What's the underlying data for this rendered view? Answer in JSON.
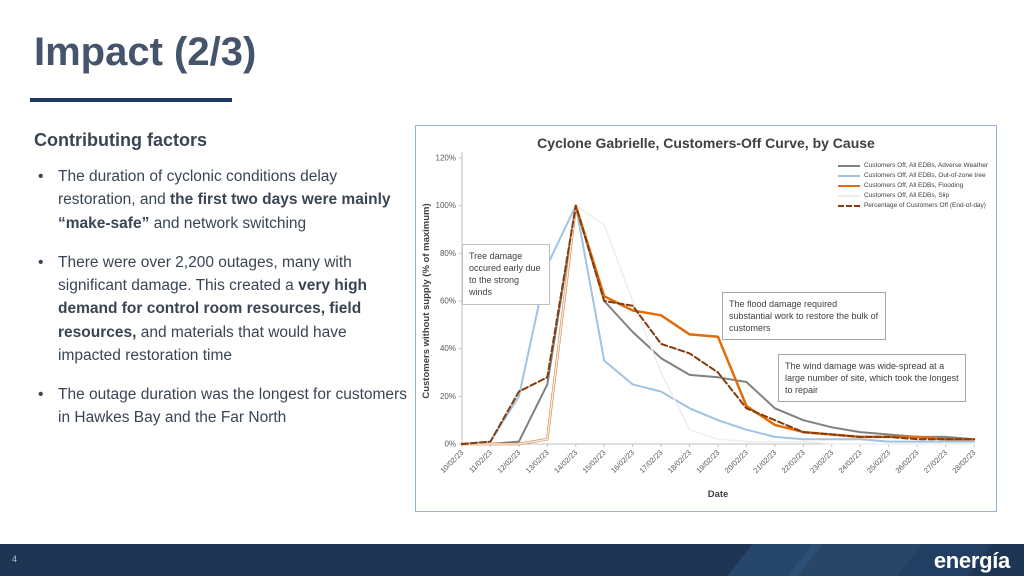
{
  "slide": {
    "title": "Impact (2/3)",
    "page_number": "4",
    "logo_text": "energía"
  },
  "left_panel": {
    "heading": "Contributing factors",
    "bullets": [
      {
        "segments": [
          {
            "text": "The duration of cyclonic conditions delay restoration, and ",
            "bold": false
          },
          {
            "text": "the first two days were mainly “make-safe” ",
            "bold": true
          },
          {
            "text": "and network switching",
            "bold": false
          }
        ]
      },
      {
        "segments": [
          {
            "text": "There were over 2,200 outages, many with significant damage. This created a ",
            "bold": false
          },
          {
            "text": "very high demand for control room resources, field resources, ",
            "bold": true
          },
          {
            "text": "and materials that would have impacted restoration time",
            "bold": false
          }
        ]
      },
      {
        "segments": [
          {
            "text": "The outage duration was the longest for customers in Hawkes Bay and the Far North",
            "bold": false
          }
        ]
      }
    ]
  },
  "chart_data": {
    "type": "line",
    "title": "Cyclone Gabrielle, Customers-Off Curve, by Cause",
    "xlabel": "Date",
    "ylabel": "Customers without supply (% of maximum)",
    "ylim": [
      0,
      120
    ],
    "ytick_step": 20,
    "grid": false,
    "legend_position": "top-right",
    "categories": [
      "10/02/23",
      "11/02/23",
      "12/02/23",
      "13/02/23",
      "14/02/23",
      "15/02/23",
      "16/02/23",
      "17/02/23",
      "18/02/23",
      "19/02/23",
      "20/02/23",
      "21/02/23",
      "22/02/23",
      "23/02/23",
      "24/02/23",
      "25/02/23",
      "26/02/23",
      "27/02/23",
      "28/02/23"
    ],
    "series": [
      {
        "name": "Customers Off, All EDBs, Adverse Weather",
        "color": "#808080",
        "width": 2,
        "dash": "",
        "values": [
          0,
          0,
          1,
          25,
          100,
          60,
          47,
          36,
          29,
          28,
          26,
          15,
          10,
          7,
          5,
          4,
          3,
          3,
          2
        ]
      },
      {
        "name": "Customers Off, All EDBs, Out-of-zone tree",
        "color": "#9dc3e6",
        "width": 2,
        "dash": "",
        "values": [
          0,
          1,
          20,
          75,
          100,
          35,
          25,
          22,
          15,
          10,
          6,
          3,
          2,
          2,
          2,
          1,
          1,
          1,
          1
        ]
      },
      {
        "name": "Customers Off, All EDBs, Flooding",
        "color": "#e36c09",
        "width": 2.5,
        "dash": "",
        "values": [
          0,
          0,
          0,
          2,
          100,
          62,
          56,
          54,
          46,
          45,
          16,
          8,
          5,
          4,
          3,
          3,
          3,
          2,
          2
        ]
      },
      {
        "name": "Customers Off, All EDBs, Slip",
        "color": "#ededed",
        "width": 1.5,
        "dash": "",
        "values": [
          0,
          0,
          0,
          2,
          100,
          92,
          60,
          30,
          6,
          2,
          1,
          1,
          1,
          0,
          0,
          0,
          0,
          0,
          0
        ]
      },
      {
        "name": "Percentage of Customers Off (End-of-day)",
        "color": "#843c0c",
        "width": 2,
        "dash": "6,3",
        "values": [
          0,
          1,
          22,
          28,
          100,
          60,
          58,
          42,
          38,
          30,
          15,
          10,
          5,
          4,
          3,
          3,
          2,
          2,
          2
        ]
      }
    ],
    "annotations": [
      {
        "text": "Tree damage occured early due to the strong winds"
      },
      {
        "text": "The flood damage required substantial work to restore the bulk of customers"
      },
      {
        "text": "The wind damage was wide-spread at a large number of site, which took the longest to repair"
      }
    ]
  }
}
